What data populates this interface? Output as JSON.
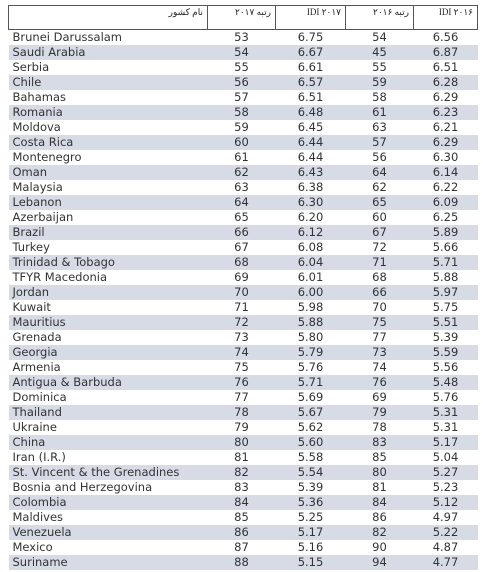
{
  "table": {
    "header": [
      "نام کشور",
      "رتبه ۲۰۱۷",
      "IDI ۲۰۱۷",
      "رتبه ۲۰۱۶",
      "IDI ۲۰۱۶"
    ],
    "rows": [
      [
        "Brunei Darussalam",
        "53",
        "6.75",
        "54",
        "6.56"
      ],
      [
        "Saudi Arabia",
        "54",
        "6.67",
        "45",
        "6.87"
      ],
      [
        "Serbia",
        "55",
        "6.61",
        "55",
        "6.51"
      ],
      [
        "Chile",
        "56",
        "6.57",
        "59",
        "6.28"
      ],
      [
        "Bahamas",
        "57",
        "6.51",
        "58",
        "6.29"
      ],
      [
        "Romania",
        "58",
        "6.48",
        "61",
        "6.23"
      ],
      [
        "Moldova",
        "59",
        "6.45",
        "63",
        "6.21"
      ],
      [
        "Costa Rica",
        "60",
        "6.44",
        "57",
        "6.29"
      ],
      [
        "Montenegro",
        "61",
        "6.44",
        "56",
        "6.30"
      ],
      [
        "Oman",
        "62",
        "6.43",
        "64",
        "6.14"
      ],
      [
        "Malaysia",
        "63",
        "6.38",
        "62",
        "6.22"
      ],
      [
        "Lebanon",
        "64",
        "6.30",
        "65",
        "6.09"
      ],
      [
        "Azerbaijan",
        "65",
        "6.20",
        "60",
        "6.25"
      ],
      [
        "Brazil",
        "66",
        "6.12",
        "67",
        "5.89"
      ],
      [
        "Turkey",
        "67",
        "6.08",
        "72",
        "5.66"
      ],
      [
        "Trinidad & Tobago",
        "68",
        "6.04",
        "71",
        "5.71"
      ],
      [
        "TFYR Macedonia",
        "69",
        "6.01",
        "68",
        "5.88"
      ],
      [
        "Jordan",
        "70",
        "6.00",
        "66",
        "5.97"
      ],
      [
        "Kuwait",
        "71",
        "5.98",
        "70",
        "5.75"
      ],
      [
        "Mauritius",
        "72",
        "5.88",
        "75",
        "5.51"
      ],
      [
        "Grenada",
        "73",
        "5.80",
        "77",
        "5.39"
      ],
      [
        "Georgia",
        "74",
        "5.79",
        "73",
        "5.59"
      ],
      [
        "Armenia",
        "75",
        "5.76",
        "74",
        "5.56"
      ],
      [
        "Antigua & Barbuda",
        "76",
        "5.71",
        "76",
        "5.48"
      ],
      [
        "Dominica",
        "77",
        "5.69",
        "69",
        "5.76"
      ],
      [
        "Thailand",
        "78",
        "5.67",
        "79",
        "5.31"
      ],
      [
        "Ukraine",
        "79",
        "5.62",
        "78",
        "5.31"
      ],
      [
        "China",
        "80",
        "5.60",
        "83",
        "5.17"
      ],
      [
        "Iran (I.R.)",
        "81",
        "5.58",
        "85",
        "5.04"
      ],
      [
        "St. Vincent & the Grenadines",
        "82",
        "5.54",
        "80",
        "5.27"
      ],
      [
        "Bosnia and Herzegovina",
        "83",
        "5.39",
        "81",
        "5.23"
      ],
      [
        "Colombia",
        "84",
        "5.36",
        "84",
        "5.12"
      ],
      [
        "Maldives",
        "85",
        "5.25",
        "86",
        "4.97"
      ],
      [
        "Venezuela",
        "86",
        "5.17",
        "82",
        "5.22"
      ],
      [
        "Mexico",
        "87",
        "5.16",
        "90",
        "4.87"
      ],
      [
        "Suriname",
        "88",
        "5.15",
        "94",
        "4.77"
      ]
    ]
  }
}
